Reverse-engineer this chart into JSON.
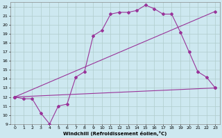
{
  "xlabel": "Windchill (Refroidissement éolien,°C)",
  "bg_color": "#cde8f0",
  "grid_color": "#b0cccc",
  "line_color": "#993399",
  "xlim": [
    -0.5,
    23.5
  ],
  "ylim": [
    9,
    22.5
  ],
  "xticks": [
    0,
    1,
    2,
    3,
    4,
    5,
    6,
    7,
    8,
    9,
    10,
    11,
    12,
    13,
    14,
    15,
    16,
    17,
    18,
    19,
    20,
    21,
    22,
    23
  ],
  "yticks": [
    9,
    10,
    11,
    12,
    13,
    14,
    15,
    16,
    17,
    18,
    19,
    20,
    21,
    22
  ],
  "line1_x": [
    0,
    1,
    2,
    3,
    4,
    5,
    6,
    7,
    8,
    9,
    10,
    11,
    12,
    13,
    14,
    15,
    16,
    17,
    18,
    19,
    20,
    21,
    22,
    23
  ],
  "line1_y": [
    12.0,
    11.8,
    11.8,
    10.2,
    9.0,
    11.0,
    11.2,
    14.2,
    14.8,
    18.8,
    19.4,
    21.2,
    21.4,
    21.4,
    21.6,
    22.2,
    21.8,
    21.2,
    21.2,
    19.2,
    17.0,
    14.8,
    14.2,
    13.0
  ],
  "line2_x": [
    0,
    23
  ],
  "line2_y": [
    12.0,
    21.5
  ],
  "line3_x": [
    0,
    23
  ],
  "line3_y": [
    12.0,
    13.0
  ],
  "marker": "D",
  "markersize": 2.0,
  "linewidth": 0.8
}
